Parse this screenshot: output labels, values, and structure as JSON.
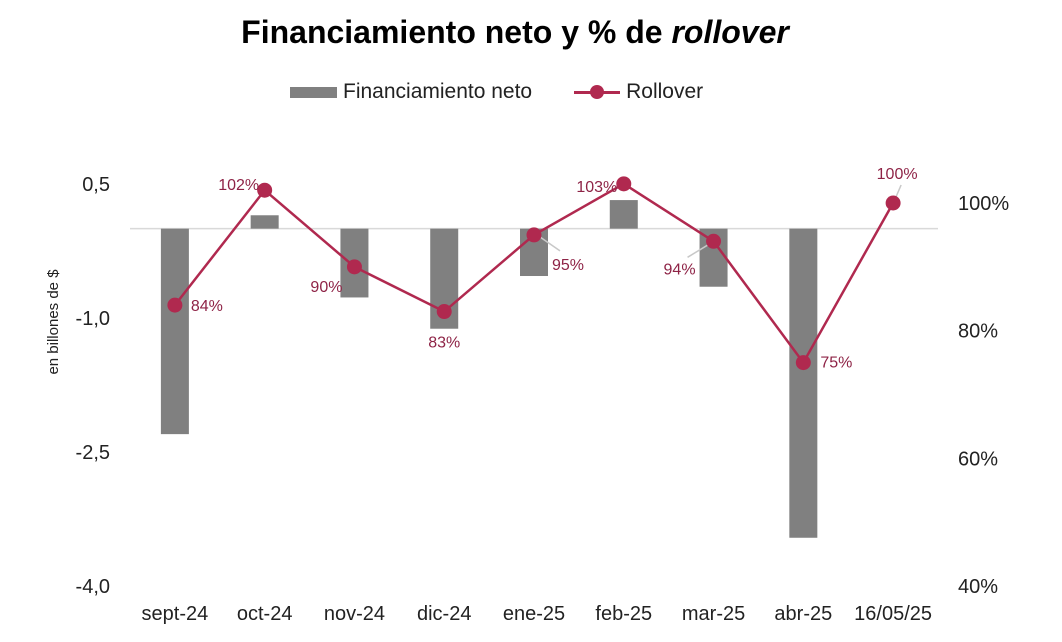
{
  "chart_data": {
    "type": "bar+line",
    "title_main": "Financiamiento neto y % de ",
    "title_italic": "rollover",
    "categories": [
      "sept-24",
      "oct-24",
      "nov-24",
      "dic-24",
      "ene-25",
      "feb-25",
      "mar-25",
      "abr-25",
      "16/05/25"
    ],
    "series": [
      {
        "name": "Financiamiento neto",
        "kind": "bar",
        "axis": "left",
        "color": "#808080",
        "values": [
          -2.3,
          0.15,
          -0.77,
          -1.12,
          -0.53,
          0.32,
          -0.65,
          -3.46,
          null
        ]
      },
      {
        "name": "Rollover",
        "kind": "line",
        "axis": "right",
        "color": "#b0294f",
        "values": [
          84,
          102,
          90,
          83,
          95,
          103,
          94,
          75,
          100
        ],
        "labels": [
          "84%",
          "102%",
          "90%",
          "83%",
          "95%",
          "103%",
          "94%",
          "75%",
          "100%"
        ]
      }
    ],
    "y_left": {
      "label": "en billones de $",
      "range": [
        -4.0,
        0.5
      ],
      "ticks": [
        0.5,
        -1.0,
        -2.5,
        -4.0
      ],
      "tick_labels": [
        "0,5",
        "-1,0",
        "-2,5",
        "-4,0"
      ]
    },
    "y_right": {
      "range": [
        40,
        103
      ],
      "ticks": [
        100,
        80,
        60,
        40
      ],
      "tick_labels": [
        "100%",
        "80%",
        "60%",
        "40%"
      ]
    },
    "legend_position": "top-center",
    "grid": false
  }
}
